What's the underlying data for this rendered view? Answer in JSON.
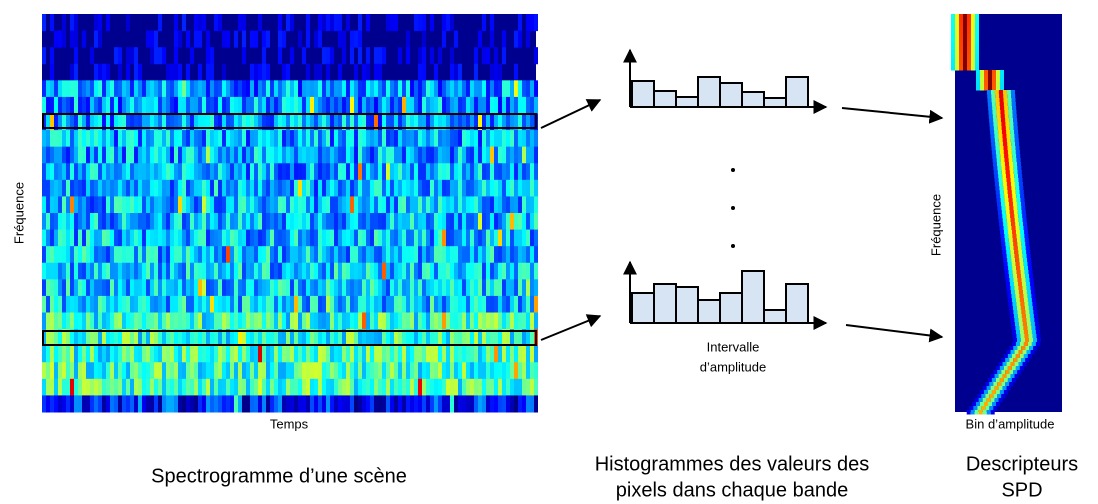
{
  "spectrogram": {
    "y_label": "Fréquence",
    "x_label": "Temps",
    "caption": "Spectrogramme d’une scène"
  },
  "histograms": {
    "x_label_lines": [
      "Intervalle",
      "d’amplitude"
    ],
    "caption_lines": [
      "Histogrammes des valeurs des",
      "pixels dans chaque bande"
    ]
  },
  "descriptors": {
    "y_label": "Fréquence",
    "x_label": "Bin d’amplitude",
    "caption_lines": [
      "Descripteurs",
      "SPD"
    ]
  }
}
